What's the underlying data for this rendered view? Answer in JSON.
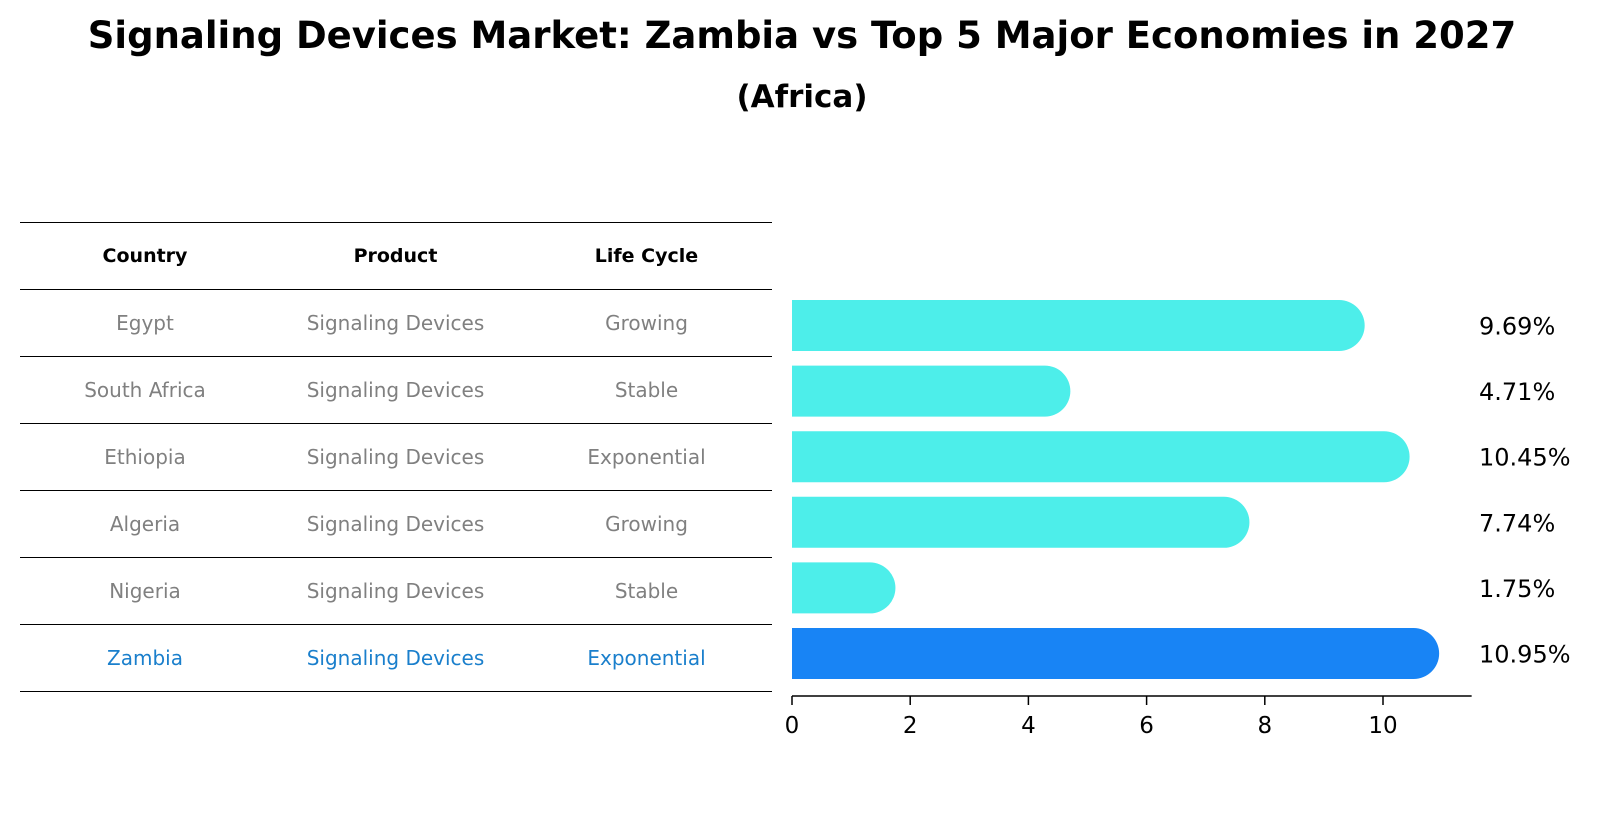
{
  "title": "Signaling Devices Market: Zambia vs Top 5 Major Economies in 2027",
  "subtitle": "(Africa)",
  "table": {
    "headers": [
      "Country",
      "Product",
      "Life Cycle"
    ],
    "rows": [
      {
        "country": "Egypt",
        "product": "Signaling Devices",
        "life_cycle": "Growing"
      },
      {
        "country": "South Africa",
        "product": "Signaling Devices",
        "life_cycle": "Stable"
      },
      {
        "country": "Ethiopia",
        "product": "Signaling Devices",
        "life_cycle": "Exponential"
      },
      {
        "country": "Algeria",
        "product": "Signaling Devices",
        "life_cycle": "Growing"
      },
      {
        "country": "Nigeria",
        "product": "Signaling Devices",
        "life_cycle": "Stable"
      },
      {
        "country": "Zambia",
        "product": "Signaling Devices",
        "life_cycle": "Exponential"
      }
    ]
  },
  "colors": {
    "bar": "#4DEEEA",
    "highlight_bar": "#1884F5",
    "highlight_text": "#1A7FCC",
    "muted_text": "#808080"
  },
  "chart_data": {
    "type": "bar",
    "orientation": "horizontal",
    "title": "Signaling Devices Market: Zambia vs Top 5 Major Economies in 2027",
    "subtitle": "(Africa)",
    "categories": [
      "Egypt",
      "South Africa",
      "Ethiopia",
      "Algeria",
      "Nigeria",
      "Zambia"
    ],
    "values": [
      9.69,
      4.71,
      10.45,
      7.74,
      1.75,
      10.95
    ],
    "labels": [
      "9.69%",
      "4.71%",
      "10.45%",
      "7.74%",
      "1.75%",
      "10.95%"
    ],
    "highlight": "Zambia",
    "xticks": [
      0,
      2,
      4,
      6,
      8,
      10
    ],
    "xlim": [
      0,
      11.5
    ],
    "xlabel": "",
    "ylabel": ""
  }
}
